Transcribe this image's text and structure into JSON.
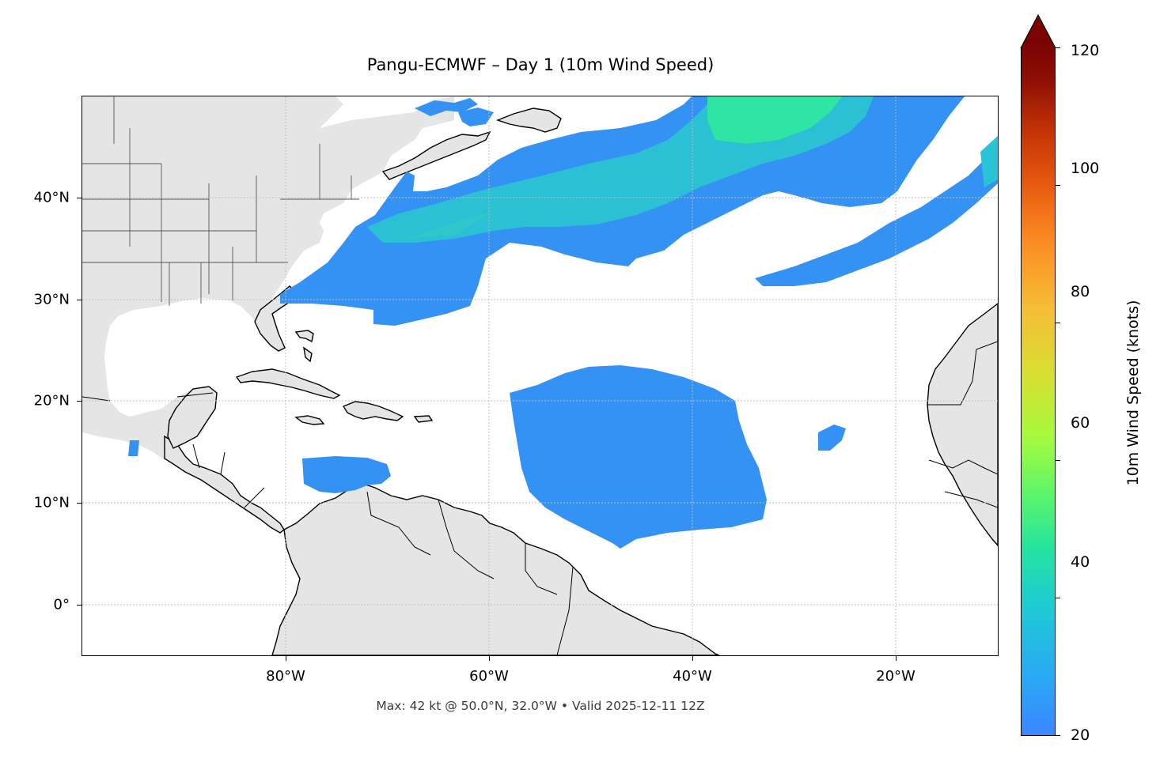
{
  "title": "Pangu-ECMWF – Day 1 (10m Wind Speed)",
  "footer": "Max: 42 kt @ 50.0°N, 32.0°W • Valid 2025-12-11 12Z",
  "map": {
    "lon_range": [
      -100,
      -10
    ],
    "lat_range": [
      -5,
      50
    ],
    "lat_labels": [
      "40°N",
      "30°N",
      "20°N",
      "10°N",
      "0°"
    ],
    "lon_labels": [
      "80°W",
      "60°W",
      "40°W",
      "20°W"
    ],
    "land_color": "#e5e5e5",
    "coast_color": "#000000",
    "gridlines": true
  },
  "colorbar": {
    "label": "10m Wind Speed (knots)",
    "min": 20,
    "max": 120,
    "extend": "max",
    "ticks": [
      "20",
      "40",
      "60",
      "80",
      "100",
      "120"
    ],
    "colors": [
      "#3d86ff",
      "#1fc8d8",
      "#23e3a0",
      "#a3fb3e",
      "#f6bd36",
      "#e85a10",
      "#7a0403"
    ]
  },
  "wind_field": {
    "max_speed_kt": 42,
    "max_location": "50.0°N, 32.0°W",
    "valid_time": "2025-12-11 12Z",
    "cmap": "turbo"
  }
}
